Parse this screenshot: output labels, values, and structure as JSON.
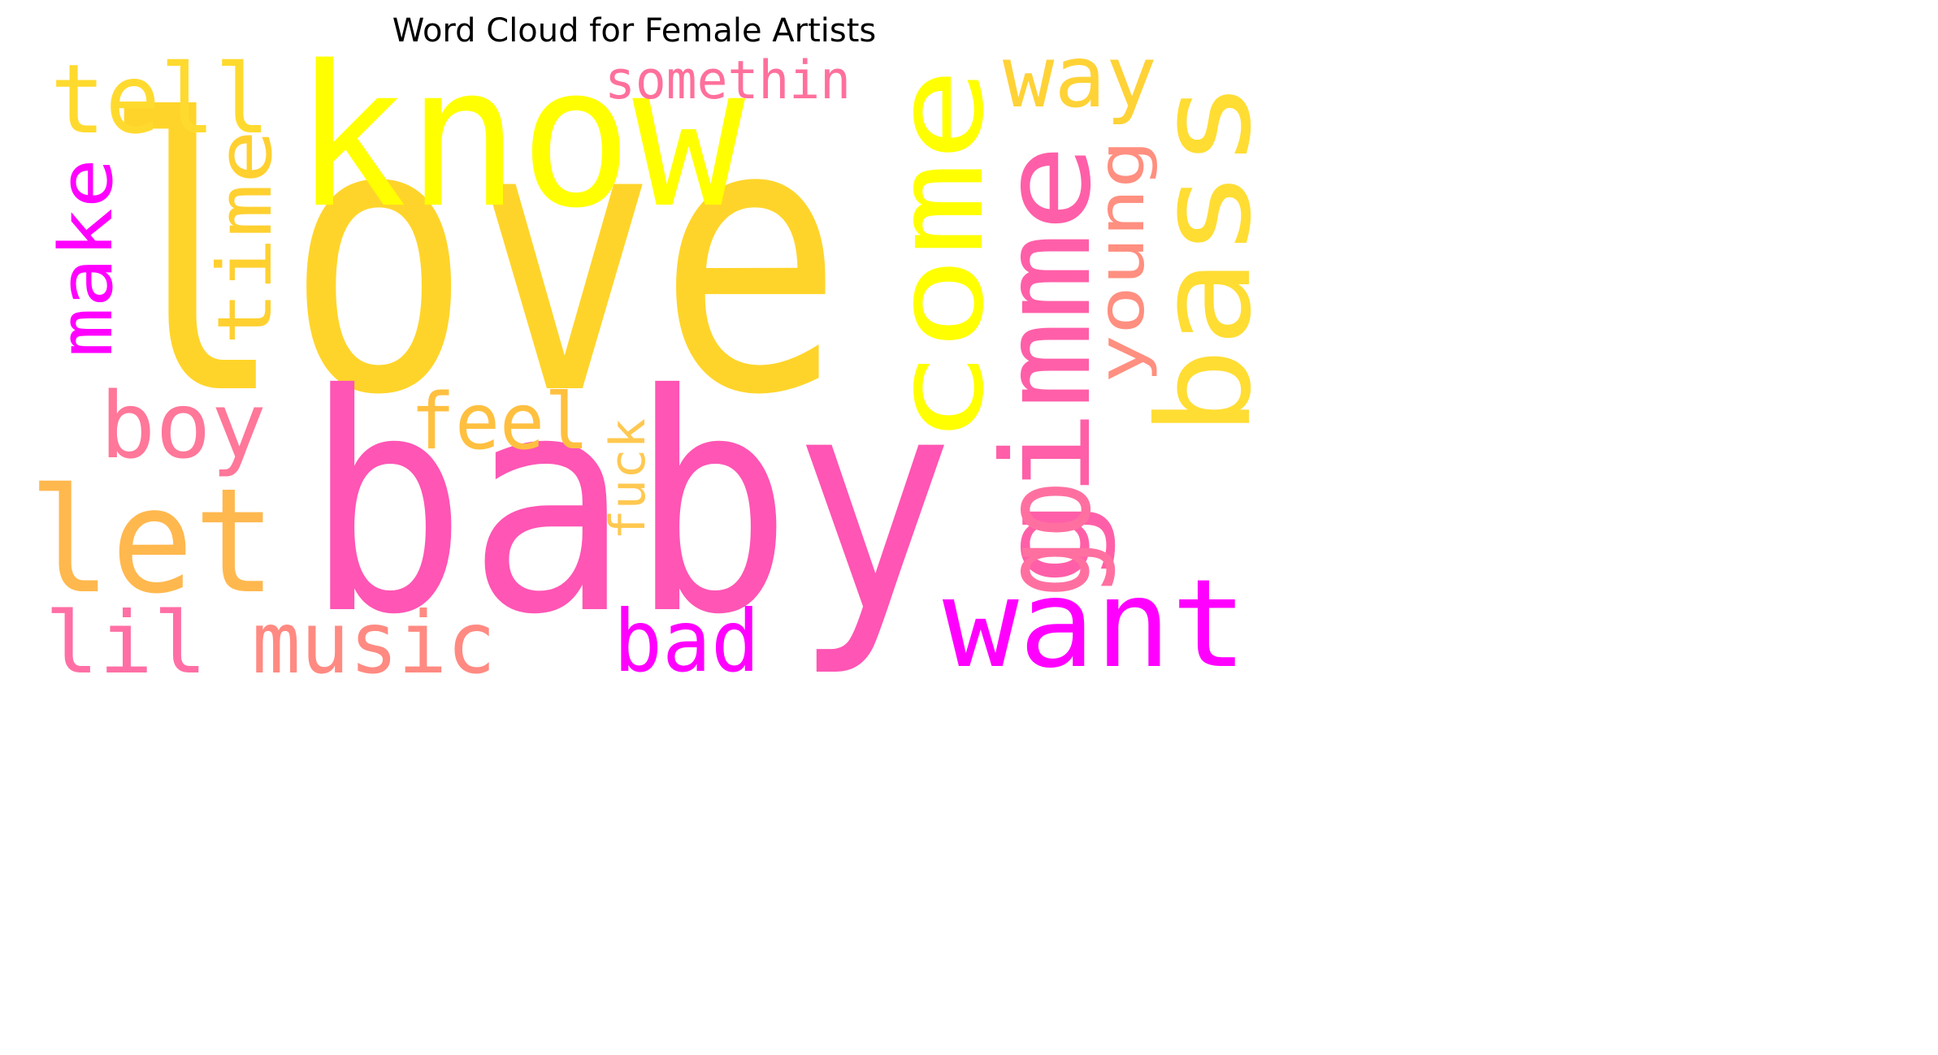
{
  "title": "Word Cloud for Female Artists",
  "words": [
    {
      "text": "love",
      "color": "#FFD42A"
    },
    {
      "text": "baby",
      "color": "#FF55B4"
    },
    {
      "text": "know",
      "color": "#FFFF00"
    },
    {
      "text": "come",
      "color": "#FFFF00"
    },
    {
      "text": "bass",
      "color": "#FFDD33"
    },
    {
      "text": "gimme",
      "color": "#FF5FA8"
    },
    {
      "text": "want",
      "color": "#FF00FF"
    },
    {
      "text": "tell",
      "color": "#FFDA2E"
    },
    {
      "text": "let",
      "color": "#FFB84E"
    },
    {
      "text": "make",
      "color": "#FF00FF"
    },
    {
      "text": "time",
      "color": "#FFD030"
    },
    {
      "text": "boy",
      "color": "#FF7799"
    },
    {
      "text": "feel",
      "color": "#FFC040"
    },
    {
      "text": "somethin",
      "color": "#FF709C"
    },
    {
      "text": "way",
      "color": "#FFD236"
    },
    {
      "text": "young",
      "color": "#FF8F80"
    },
    {
      "text": "go",
      "color": "#FF70A0"
    },
    {
      "text": "fuck",
      "color": "#FFC850"
    },
    {
      "text": "lil",
      "color": "#FF6FA5"
    },
    {
      "text": "music",
      "color": "#FF8A82"
    },
    {
      "text": "bad",
      "color": "#FF00FF"
    }
  ]
}
